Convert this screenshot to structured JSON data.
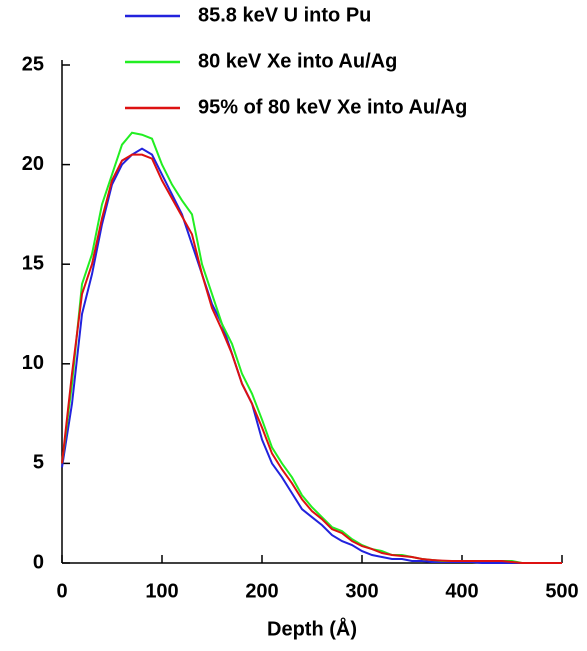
{
  "chart_data": {
    "type": "line",
    "xlabel": "Depth (Å)",
    "xlim": [
      0,
      500
    ],
    "xticks": [
      0,
      100,
      200,
      300,
      400,
      500
    ],
    "ylim": [
      0,
      25
    ],
    "yticks": [
      0,
      5,
      10,
      15,
      20,
      25
    ],
    "x": [
      0,
      10,
      20,
      30,
      40,
      50,
      60,
      70,
      80,
      90,
      100,
      110,
      120,
      130,
      140,
      150,
      160,
      170,
      180,
      190,
      200,
      210,
      220,
      230,
      240,
      250,
      260,
      270,
      280,
      290,
      300,
      310,
      320,
      330,
      340,
      350,
      360,
      370,
      380,
      390,
      400,
      410,
      420,
      430,
      440,
      450,
      460,
      470,
      480,
      490,
      500
    ],
    "series": [
      {
        "name": "85.8 keV U into Pu",
        "color": "#2222dd",
        "values": [
          4.8,
          8,
          12.5,
          14.5,
          17,
          19,
          20,
          20.5,
          20.8,
          20.5,
          19.5,
          18.5,
          17.5,
          16,
          14.5,
          13,
          12,
          10.5,
          9,
          8,
          6.2,
          5,
          4.3,
          3.5,
          2.7,
          2.3,
          1.9,
          1.4,
          1.1,
          0.9,
          0.6,
          0.4,
          0.3,
          0.2,
          0.2,
          0.1,
          0.1,
          0.05,
          0.05,
          0.05,
          0.05,
          0.05,
          0,
          0,
          0,
          0,
          0,
          0,
          0,
          0,
          0
        ]
      },
      {
        "name": "80 keV Xe into Au/Ag",
        "color": "#22ee22",
        "values": [
          5,
          9,
          14,
          15.5,
          18,
          19.5,
          21,
          21.6,
          21.5,
          21.3,
          20,
          19,
          18.2,
          17.5,
          15,
          13.5,
          12,
          11,
          9.5,
          8.5,
          7.2,
          5.8,
          5,
          4.3,
          3.4,
          2.8,
          2.3,
          1.8,
          1.6,
          1.2,
          0.9,
          0.7,
          0.6,
          0.4,
          0.4,
          0.3,
          0.2,
          0.15,
          0.1,
          0.1,
          0.1,
          0.1,
          0.1,
          0.1,
          0.1,
          0.1,
          0,
          0,
          0,
          0,
          0
        ]
      },
      {
        "name": "95% of 80 keV Xe into Au/Ag",
        "color": "#dd1111",
        "values": [
          5,
          9.5,
          13.5,
          15,
          17.3,
          19.2,
          20.2,
          20.5,
          20.5,
          20.3,
          19.2,
          18.3,
          17.4,
          16.5,
          14.5,
          12.8,
          11.7,
          10.5,
          9,
          8,
          6.8,
          5.5,
          4.7,
          4,
          3.2,
          2.6,
          2.2,
          1.7,
          1.5,
          1.1,
          0.85,
          0.7,
          0.5,
          0.4,
          0.35,
          0.3,
          0.2,
          0.15,
          0.12,
          0.1,
          0.1,
          0.1,
          0.1,
          0.1,
          0.1,
          0.05,
          0,
          0,
          0,
          0,
          0
        ]
      }
    ]
  }
}
